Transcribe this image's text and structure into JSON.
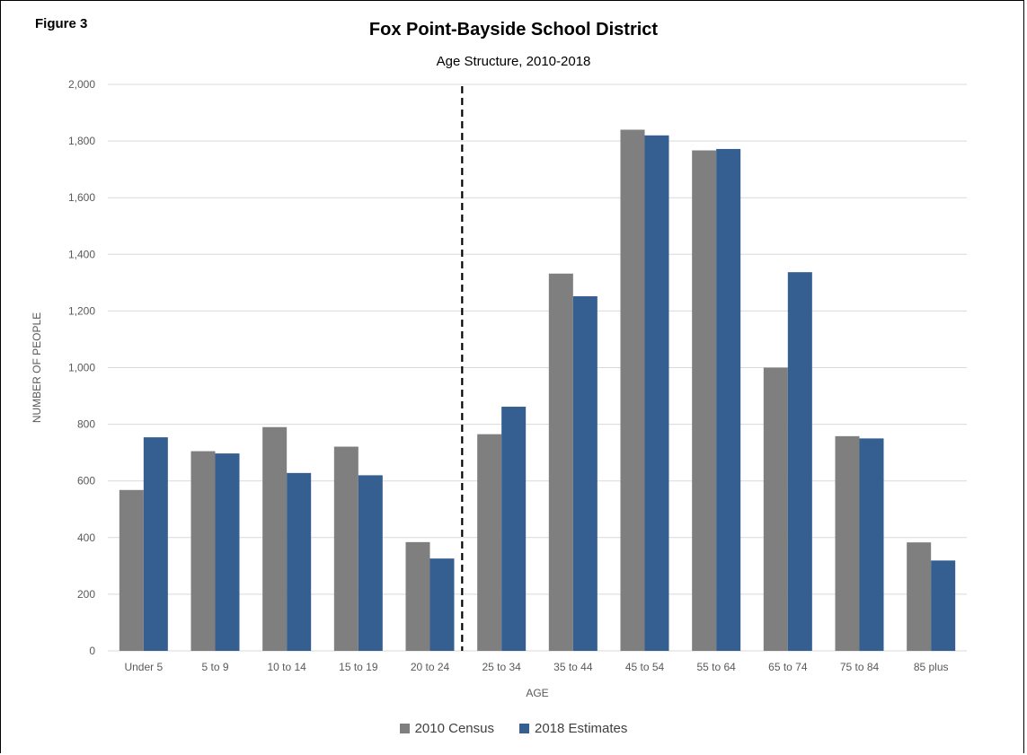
{
  "figure_label": "Figure 3",
  "colors": {
    "census_2010": "#7f7f7f",
    "estimates_2018": "#355f91",
    "gridline": "#d9d9d9",
    "divider": "#000000"
  },
  "chart_data": {
    "type": "bar",
    "title": "Fox Point-Bayside  School District",
    "subtitle": "Age Structure,  2010-2018",
    "xlabel": "AGE",
    "ylabel": "NUMBER  OF PEOPLE",
    "categories": [
      "Under 5",
      "5 to 9",
      "10 to 14",
      "15 to 19",
      "20 to 24",
      "25 to 34",
      "35 to 44",
      "45 to 54",
      "55 to 64",
      "65 to 74",
      "75 to 84",
      "85 plus"
    ],
    "series": [
      {
        "name": "2010 Census",
        "values": [
          568,
          705,
          790,
          721,
          384,
          765,
          1332,
          1840,
          1767,
          1000,
          758,
          383
        ]
      },
      {
        "name": "2018 Estimates",
        "values": [
          754,
          697,
          628,
          620,
          326,
          862,
          1252,
          1820,
          1772,
          1337,
          750,
          319
        ]
      }
    ],
    "ylim": [
      0,
      2000
    ],
    "yticks": [
      0,
      200,
      400,
      600,
      800,
      1000,
      1200,
      1400,
      1600,
      1800,
      2000
    ],
    "ytick_labels": [
      "0",
      "200",
      "400",
      "600",
      "800",
      "1,000",
      "1,200",
      "1,400",
      "1,600",
      "1,800",
      "2,000"
    ],
    "grid": true,
    "legend_position": "bottom",
    "divider_after_category": "20 to 24",
    "divider_style": "dashed"
  }
}
